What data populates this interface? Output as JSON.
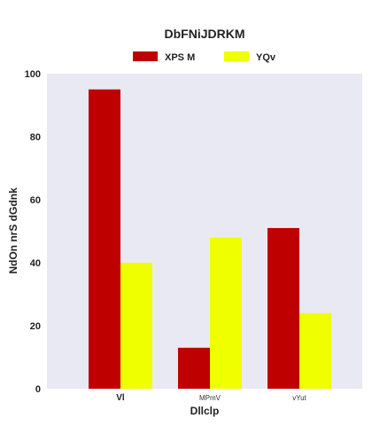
{
  "chart_data": {
    "type": "bar",
    "title": "DbFNiJDRKM",
    "xlabel": "Dllclp",
    "ylabel": "NdOn nrS dGdnk",
    "categories": [
      "Vl",
      "MPmV",
      "vYut"
    ],
    "series": [
      {
        "name": "XPS M",
        "values": [
          95,
          13,
          51
        ],
        "color": "#bf0000"
      },
      {
        "name": "YQv",
        "values": [
          40,
          48,
          24
        ],
        "color": "#f0ff00"
      }
    ],
    "ylim": [
      0,
      100
    ],
    "yticks": [
      0,
      20,
      40,
      60,
      80,
      100
    ],
    "grid": false,
    "legend_position": "top-center",
    "plot_background": "#e9e9f3"
  }
}
